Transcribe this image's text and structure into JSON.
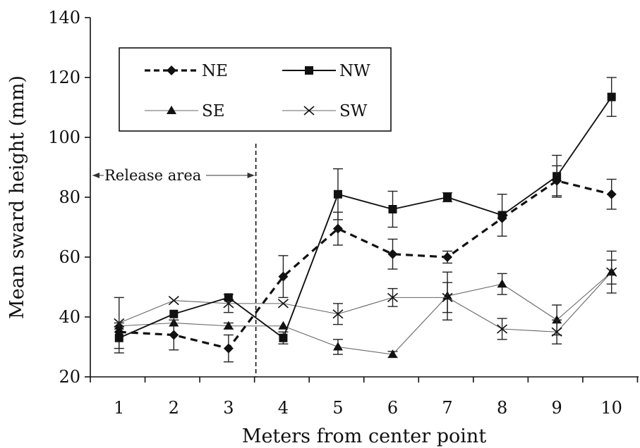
{
  "chart_data": {
    "type": "line",
    "title": "",
    "xlabel": "Meters from center point",
    "ylabel": "Mean sward height (mm)",
    "ylim": [
      20,
      140
    ],
    "yticks": [
      "20",
      "40",
      "60",
      "80",
      "100",
      "120",
      "140"
    ],
    "categories": [
      "1",
      "2",
      "3",
      "4",
      "5",
      "6",
      "7",
      "8",
      "9",
      "10"
    ],
    "x": [
      1,
      2,
      3,
      4,
      5,
      6,
      7,
      8,
      9,
      10
    ],
    "grid": false,
    "legend": {
      "placement": "top-left",
      "columns": 2
    },
    "annotations": [
      {
        "text": "Release area",
        "x_divider": 3.5
      }
    ],
    "series": [
      {
        "name": "NE",
        "line_style": "dashed-thick",
        "marker": "diamond",
        "color": "#111111",
        "values": [
          35,
          34,
          29.5,
          53.5,
          69.5,
          61,
          60,
          73,
          85.5,
          81
        ],
        "error": [
          null,
          5,
          4.5,
          7,
          5.5,
          5,
          2,
          null,
          5,
          5
        ]
      },
      {
        "name": "NW",
        "line_style": "solid",
        "marker": "square",
        "color": "#111111",
        "values": [
          33,
          41,
          46.5,
          33,
          81,
          76,
          80,
          74,
          87,
          113.5
        ],
        "error": [
          5,
          null,
          null,
          2,
          8.5,
          6,
          1.5,
          7,
          7,
          6.5
        ]
      },
      {
        "name": "SE",
        "line_style": "thin",
        "marker": "triangle",
        "color": "#555555",
        "values": [
          37,
          38,
          37,
          37,
          30,
          27.5,
          47,
          51,
          39,
          55
        ],
        "error": [
          null,
          null,
          1,
          null,
          2.5,
          1,
          8,
          3.5,
          5,
          7
        ]
      },
      {
        "name": "SW",
        "line_style": "thin",
        "marker": "x",
        "color": "#555555",
        "values": [
          38,
          45.5,
          44.5,
          44.5,
          41,
          46.5,
          46.5,
          36,
          35,
          55
        ],
        "error": [
          8.5,
          null,
          3,
          null,
          3.5,
          3,
          5,
          3.5,
          4,
          4
        ]
      }
    ]
  }
}
